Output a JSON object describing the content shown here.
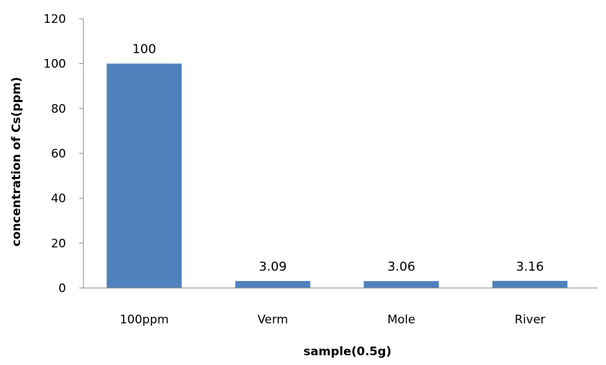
{
  "chart_data": {
    "type": "bar",
    "title": "",
    "xlabel": "sample(0.5g)",
    "ylabel": "concentration of Cs(ppm)",
    "categories": [
      "100ppm",
      "Verm",
      "Mole",
      "River"
    ],
    "series": [
      {
        "values": [
          100,
          3.09,
          3.06,
          3.16
        ],
        "data_labels": [
          "100",
          "3.09",
          "3.06",
          "3.16"
        ],
        "color": "#4f81bd"
      }
    ],
    "ylim": [
      0,
      120
    ],
    "yticks": [
      0,
      20,
      40,
      60,
      80,
      100,
      120
    ],
    "grid": false,
    "legend": "none",
    "axis_color": "#868686"
  }
}
